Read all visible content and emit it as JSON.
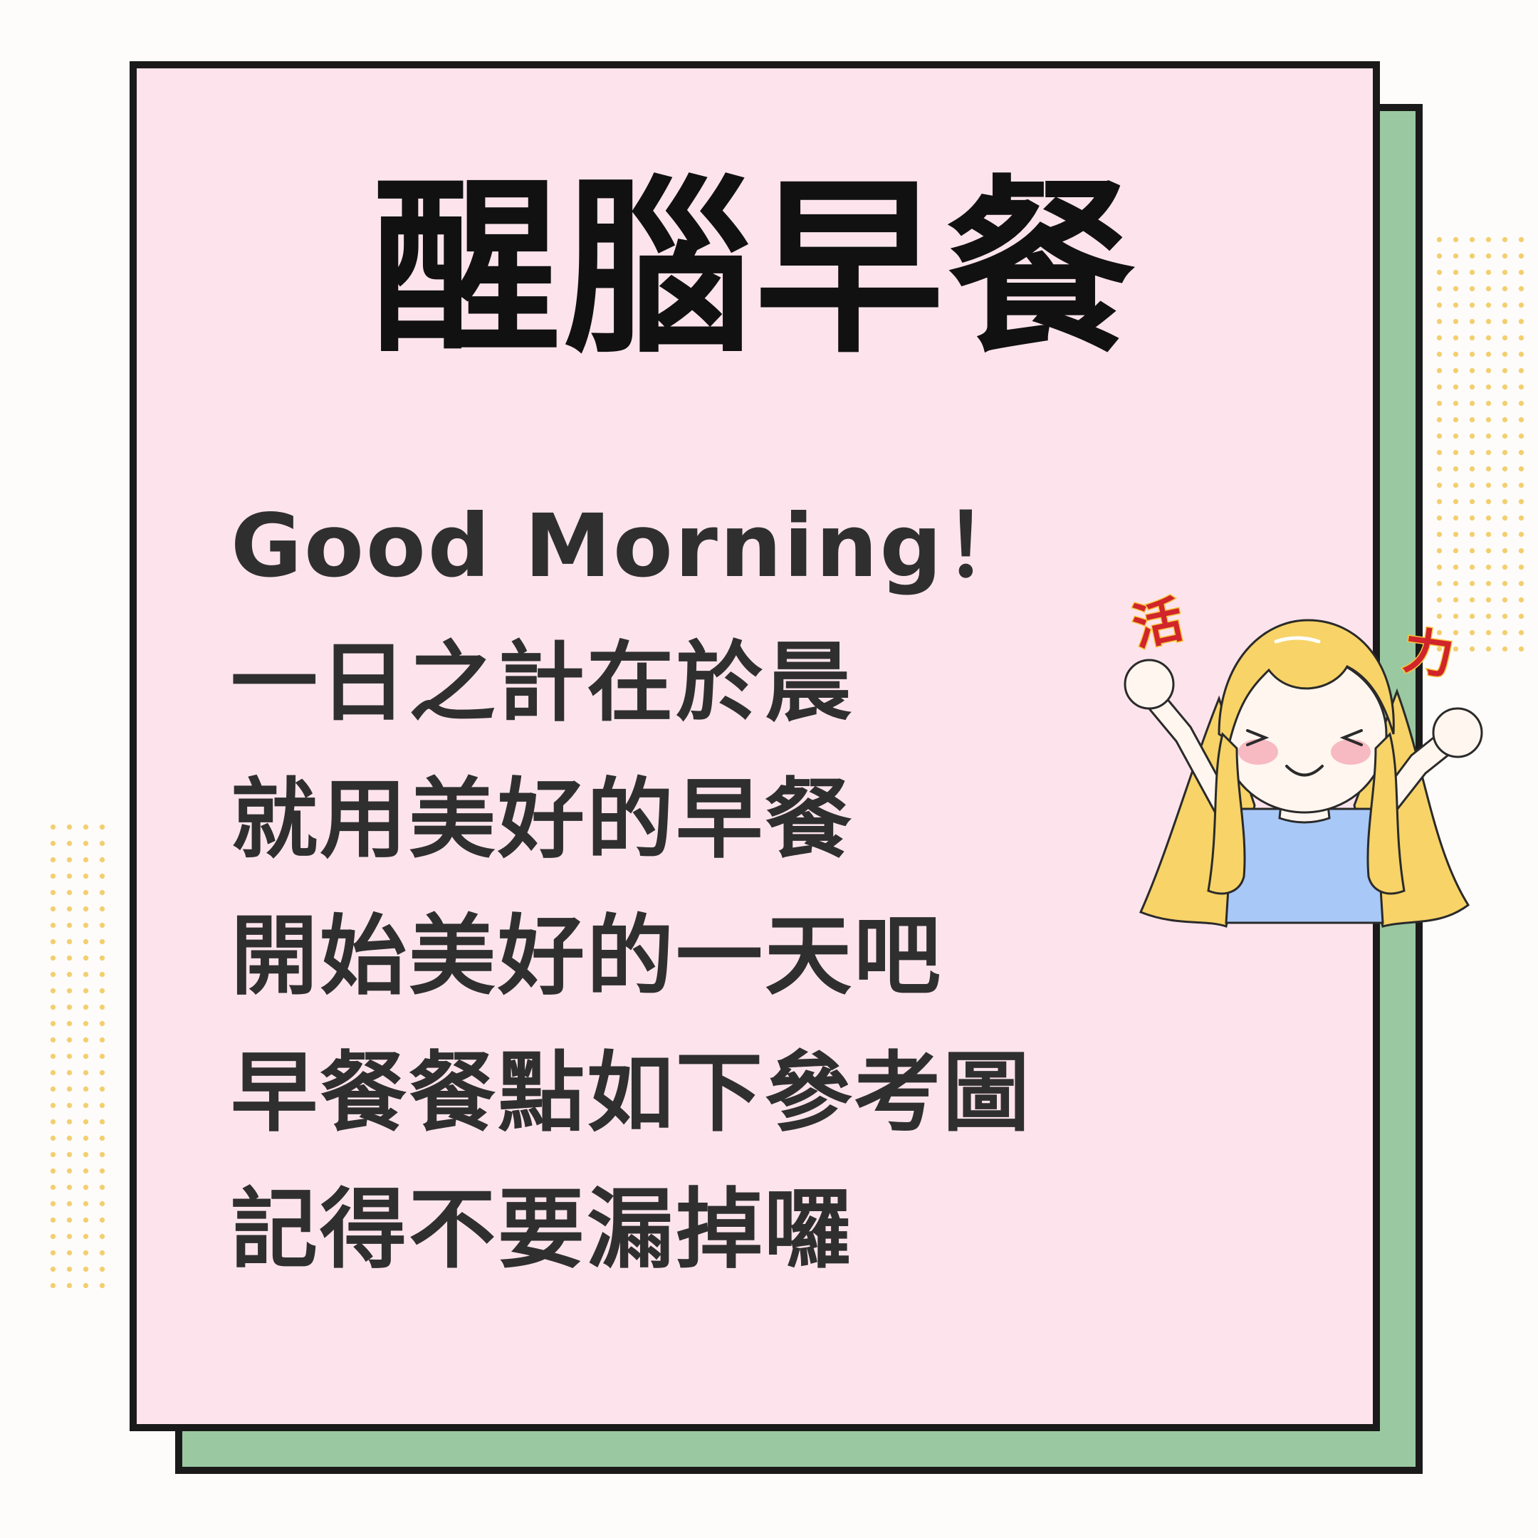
{
  "title": "醒腦早餐",
  "lines": [
    "Good Morning！",
    "一日之計在於晨",
    "就用美好的早餐",
    "開始美好的一天吧",
    "早餐餐點如下參考圖",
    "記得不要漏掉囉"
  ],
  "sticker": {
    "left_word": "活",
    "right_word": "力"
  },
  "colors": {
    "card_pink": "#fde4ec",
    "shadow_green": "#9ac9a1",
    "dot_yellow": "#f2cf6e",
    "border": "#1a1a1a",
    "sticker_text": "#d1242b"
  }
}
